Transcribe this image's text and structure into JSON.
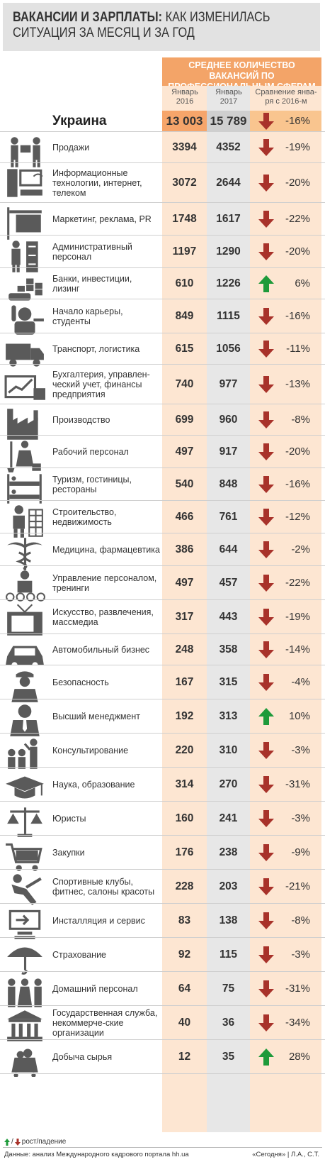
{
  "title": {
    "bold": "ВАКАНСИИ И ЗАРПЛАТЫ:",
    "line1_rest": " КАК ИЗМЕНИЛАСЬ",
    "line2": "СИТУАЦИЯ ЗА МЕСЯЦ И ЗА ГОД"
  },
  "header": {
    "band": "СРЕДНЕЕ КОЛИЧЕСТВО ВАКАНСИЙ ПО ПРОФЕССИОНАЛЬНЫМ СФЕРАМ",
    "col1": "Январь 2016",
    "col2": "Январь 2017",
    "col3": "Сравнение янва-ря с 2016-м"
  },
  "colors": {
    "up": "#1e9a3a",
    "down": "#a8322a",
    "icon": "#5a5a5a",
    "band": "#f3a468"
  },
  "chart_data": {
    "type": "table",
    "columns": [
      "Январь 2016",
      "Январь 2017",
      "Сравнение янва-ря с 2016-м"
    ],
    "rows": [
      {
        "label": "Украина",
        "icon": "ukraine",
        "jan2016": "13 003",
        "jan2017": "15 789",
        "change": "-16%",
        "dir": "down"
      },
      {
        "label": "Продажи",
        "icon": "sales-icon",
        "jan2016": "3394",
        "jan2017": "4352",
        "change": "-19%",
        "dir": "down"
      },
      {
        "label": "Информационные технологии, интернет, телеком",
        "icon": "it-icon",
        "jan2016": "3072",
        "jan2017": "2644",
        "change": "-20%",
        "dir": "down"
      },
      {
        "label": "Маркетинг, реклама, PR",
        "icon": "marketing-sign-icon",
        "jan2016": "1748",
        "jan2017": "1617",
        "change": "-22%",
        "dir": "down"
      },
      {
        "label": "Административный персонал",
        "icon": "admin-icon",
        "jan2016": "1197",
        "jan2017": "1290",
        "change": "-20%",
        "dir": "down"
      },
      {
        "label": "Банки, инвестиции, лизинг",
        "icon": "bank-coins-icon",
        "jan2016": "610",
        "jan2017": "1226",
        "change": "6%",
        "dir": "up"
      },
      {
        "label": "Начало карьеры, студенты",
        "icon": "student-icon",
        "jan2016": "849",
        "jan2017": "1115",
        "change": "-16%",
        "dir": "down"
      },
      {
        "label": "Транспорт, логистика",
        "icon": "truck-icon",
        "jan2016": "615",
        "jan2017": "1056",
        "change": "-11%",
        "dir": "down"
      },
      {
        "label": "Бухгалтерия, управлен-ческий учет, финансы предприятия",
        "icon": "accounting-chart-icon",
        "jan2016": "740",
        "jan2017": "977",
        "change": "-13%",
        "dir": "down"
      },
      {
        "label": "Производство",
        "icon": "factory-icon",
        "jan2016": "699",
        "jan2017": "960",
        "change": "-8%",
        "dir": "down"
      },
      {
        "label": "Рабочий персонал",
        "icon": "worker-icon",
        "jan2016": "497",
        "jan2017": "917",
        "change": "-20%",
        "dir": "down"
      },
      {
        "label": "Туризм, гостиницы, рестораны",
        "icon": "bunk-bed-icon",
        "jan2016": "540",
        "jan2017": "848",
        "change": "-16%",
        "dir": "down"
      },
      {
        "label": "Строительство, недвижимость",
        "icon": "builder-icon",
        "jan2016": "466",
        "jan2017": "761",
        "change": "-12%",
        "dir": "down"
      },
      {
        "label": "Медицина, фармацевтика",
        "icon": "caduceus-icon",
        "jan2016": "386",
        "jan2017": "644",
        "change": "-2%",
        "dir": "down"
      },
      {
        "label": "Управление персоналом, тренинги",
        "icon": "hr-icon",
        "jan2016": "497",
        "jan2017": "457",
        "change": "-22%",
        "dir": "down"
      },
      {
        "label": "Искусство, развлечения, массмедиа",
        "icon": "tv-icon",
        "jan2016": "317",
        "jan2017": "443",
        "change": "-19%",
        "dir": "down"
      },
      {
        "label": "Автомобильный бизнес",
        "icon": "car-icon",
        "jan2016": "248",
        "jan2017": "358",
        "change": "-14%",
        "dir": "down"
      },
      {
        "label": "Безопасность",
        "icon": "guard-icon",
        "jan2016": "167",
        "jan2017": "315",
        "change": "-4%",
        "dir": "down"
      },
      {
        "label": "Высший менеджмент",
        "icon": "manager-icon",
        "jan2016": "192",
        "jan2017": "313",
        "change": "10%",
        "dir": "up"
      },
      {
        "label": "Консультирование",
        "icon": "consultant-icon",
        "jan2016": "220",
        "jan2017": "310",
        "change": "-3%",
        "dir": "down"
      },
      {
        "label": "Наука, образование",
        "icon": "graduation-cap-icon",
        "jan2016": "314",
        "jan2017": "270",
        "change": "-31%",
        "dir": "down"
      },
      {
        "label": "Юристы",
        "icon": "scales-icon",
        "jan2016": "160",
        "jan2017": "241",
        "change": "-3%",
        "dir": "down"
      },
      {
        "label": "Закупки",
        "icon": "cart-icon",
        "jan2016": "176",
        "jan2017": "238",
        "change": "-9%",
        "dir": "down"
      },
      {
        "label": "Спортивные клубы, фитнес, салоны красоты",
        "icon": "fitness-icon",
        "jan2016": "228",
        "jan2017": "203",
        "change": "-21%",
        "dir": "down"
      },
      {
        "label": "Инсталляция и сервис",
        "icon": "install-icon",
        "jan2016": "83",
        "jan2017": "138",
        "change": "-8%",
        "dir": "down"
      },
      {
        "label": "Страхование",
        "icon": "umbrella-icon",
        "jan2016": "92",
        "jan2017": "115",
        "change": "-3%",
        "dir": "down"
      },
      {
        "label": "Домашний персонал",
        "icon": "household-icon",
        "jan2016": "64",
        "jan2017": "75",
        "change": "-31%",
        "dir": "down"
      },
      {
        "label": "Государственная служба, некоммерче-ские организации",
        "icon": "government-icon",
        "jan2016": "40",
        "jan2017": "36",
        "change": "-34%",
        "dir": "down"
      },
      {
        "label": "Добыча сырья",
        "icon": "mining-icon",
        "jan2016": "12",
        "jan2017": "35",
        "change": "28%",
        "dir": "up"
      }
    ]
  },
  "legend": {
    "text": "рост/падение"
  },
  "footer": {
    "source": "Данные: анализ Международного кадрового портала hh.ua",
    "credit": "«Сегодня» | Л.А., С.Т."
  }
}
